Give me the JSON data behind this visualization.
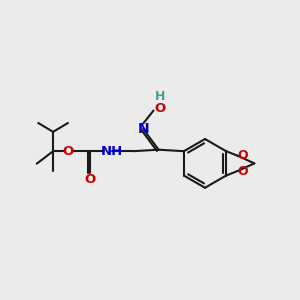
{
  "bg_color": "#ebebeb",
  "bond_color": "#1a1a1a",
  "N_color": "#0000cd",
  "O_color": "#cc0000",
  "H_color": "#4a9a9a",
  "bond_width": 1.5,
  "fig_size": [
    3.0,
    3.0
  ],
  "dpi": 100,
  "xlim": [
    0,
    10
  ],
  "ylim": [
    0,
    10
  ]
}
